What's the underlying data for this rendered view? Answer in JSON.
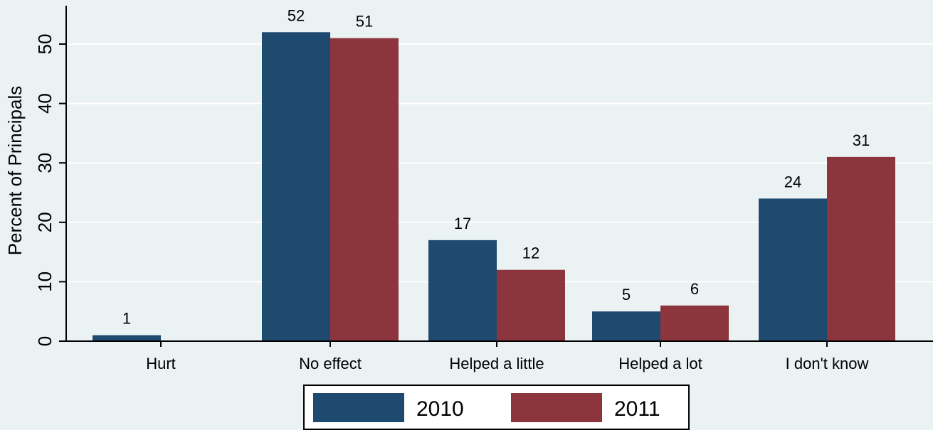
{
  "chart_data": {
    "type": "bar",
    "title": "",
    "xlabel": "",
    "ylabel": "Percent of Principals",
    "ylim": [
      0,
      55
    ],
    "yticks": [
      0,
      10,
      20,
      30,
      40,
      50
    ],
    "categories": [
      "Hurt",
      "No effect",
      "Helped a little",
      "Helped a lot",
      "I don't know"
    ],
    "series": [
      {
        "name": "2010",
        "color": "#1f4a70",
        "values": [
          1,
          52,
          17,
          5,
          24
        ],
        "labels": [
          "1",
          "52",
          "17",
          "5",
          "24"
        ]
      },
      {
        "name": "2011",
        "color": "#8c353c",
        "values": [
          0,
          51,
          12,
          6,
          31
        ],
        "labels": [
          "",
          "51",
          "12",
          "6",
          "31"
        ]
      }
    ],
    "grid": true,
    "legend_position": "bottom"
  }
}
